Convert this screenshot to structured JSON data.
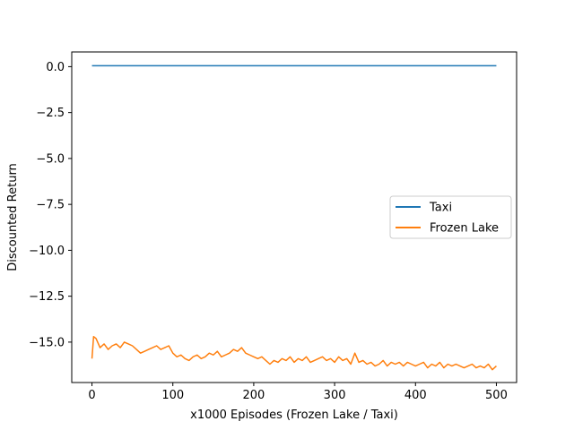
{
  "chart_data": {
    "type": "line",
    "title": "",
    "xlabel": "x1000 Episodes (Frozen Lake / Taxi)",
    "ylabel": "Discounted Return",
    "xlim": [
      -25,
      525
    ],
    "ylim": [
      -17.2,
      0.8
    ],
    "xticks": [
      0,
      100,
      200,
      300,
      400,
      500
    ],
    "xtick_labels": [
      "0",
      "100",
      "200",
      "300",
      "400",
      "500"
    ],
    "yticks": [
      0.0,
      -2.5,
      -5.0,
      -7.5,
      -10.0,
      -12.5,
      -15.0
    ],
    "ytick_labels": [
      "0.0",
      "−2.5",
      "−5.0",
      "−7.5",
      "−10.0",
      "−12.5",
      "−15.0"
    ],
    "grid": false,
    "legend_position": "center-right",
    "series": [
      {
        "name": "Taxi",
        "color": "#1f77b4",
        "x": [
          0,
          500
        ],
        "y": [
          0.05,
          0.05
        ]
      },
      {
        "name": "Frozen Lake",
        "color": "#ff7f0e",
        "x": [
          0,
          2,
          5,
          10,
          15,
          20,
          25,
          30,
          35,
          40,
          45,
          50,
          55,
          60,
          65,
          70,
          75,
          80,
          85,
          90,
          95,
          100,
          105,
          110,
          115,
          120,
          125,
          130,
          135,
          140,
          145,
          150,
          155,
          160,
          165,
          170,
          175,
          180,
          185,
          190,
          195,
          200,
          205,
          210,
          215,
          220,
          225,
          230,
          235,
          240,
          245,
          250,
          255,
          260,
          265,
          270,
          275,
          280,
          285,
          290,
          295,
          300,
          305,
          310,
          315,
          320,
          325,
          330,
          335,
          340,
          345,
          350,
          355,
          360,
          365,
          370,
          375,
          380,
          385,
          390,
          395,
          400,
          405,
          410,
          415,
          420,
          425,
          430,
          435,
          440,
          445,
          450,
          455,
          460,
          465,
          470,
          475,
          480,
          485,
          490,
          495,
          500
        ],
        "y": [
          -15.9,
          -14.7,
          -14.8,
          -15.3,
          -15.1,
          -15.4,
          -15.2,
          -15.1,
          -15.3,
          -15.0,
          -15.1,
          -15.2,
          -15.4,
          -15.6,
          -15.5,
          -15.4,
          -15.3,
          -15.2,
          -15.4,
          -15.3,
          -15.2,
          -15.6,
          -15.8,
          -15.7,
          -15.9,
          -16.0,
          -15.8,
          -15.7,
          -15.9,
          -15.8,
          -15.6,
          -15.7,
          -15.5,
          -15.8,
          -15.7,
          -15.6,
          -15.4,
          -15.5,
          -15.3,
          -15.6,
          -15.7,
          -15.8,
          -15.9,
          -15.8,
          -16.0,
          -16.2,
          -16.0,
          -16.1,
          -15.9,
          -16.0,
          -15.8,
          -16.1,
          -15.9,
          -16.0,
          -15.8,
          -16.1,
          -16.0,
          -15.9,
          -15.8,
          -16.0,
          -15.9,
          -16.1,
          -15.8,
          -16.0,
          -15.9,
          -16.2,
          -15.6,
          -16.1,
          -16.0,
          -16.2,
          -16.1,
          -16.3,
          -16.2,
          -16.0,
          -16.3,
          -16.1,
          -16.2,
          -16.1,
          -16.3,
          -16.1,
          -16.2,
          -16.3,
          -16.2,
          -16.1,
          -16.4,
          -16.2,
          -16.3,
          -16.1,
          -16.4,
          -16.2,
          -16.3,
          -16.2,
          -16.3,
          -16.4,
          -16.3,
          -16.2,
          -16.4,
          -16.3,
          -16.4,
          -16.2,
          -16.5,
          -16.3
        ]
      }
    ]
  }
}
